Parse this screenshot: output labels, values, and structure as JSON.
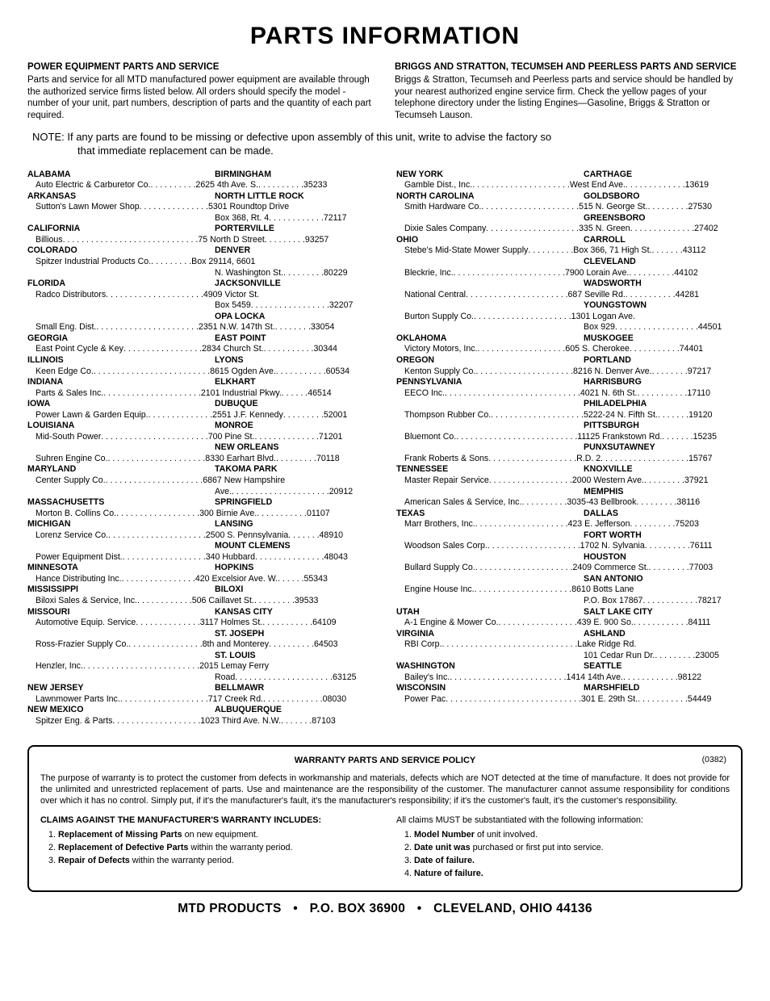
{
  "title": "PARTS INFORMATION",
  "intro": {
    "left_head": "POWER EQUIPMENT PARTS AND SERVICE",
    "left_body": "Parts and service for all MTD manufactured power equipment are available through the authorized service firms listed below. All orders should specify the model -number of your unit, part numbers, description of parts and the quantity of each part required.",
    "right_head": "BRIGGS AND STRATTON, TECUMSEH AND PEERLESS PARTS AND SERVICE",
    "right_body": "Briggs & Stratton, Tecumseh and Peerless parts and service should be handled by your nearest authorized engine service firm. Check the yellow pages of your telephone directory under the listing Engines—Gasoline, Briggs & Stratton or Tecumseh Lauson."
  },
  "note_label": "NOTE:",
  "note_body_1": "If any parts are found to be missing or defective upon assembly of this unit, write to advise the factory so",
  "note_body_2": "that immediate replacement can be made.",
  "left_entries": [
    {
      "type": "state",
      "state": "ALABAMA",
      "city": "BIRMINGHAM"
    },
    {
      "type": "co",
      "company": "Auto Electric & Carburetor Co.",
      "addr": "2625 4th Ave. S.",
      "zip": "35233"
    },
    {
      "type": "state",
      "state": "ARKANSAS",
      "city": "NORTH LITTLE ROCK"
    },
    {
      "type": "co",
      "company": "Sutton's Lawn Mower Shop",
      "addr": "5301 Roundtop Drive",
      "zip": ""
    },
    {
      "type": "cont",
      "addr": "Box 368, Rt. 4",
      "zip": "72117"
    },
    {
      "type": "state",
      "state": "CALIFORNIA",
      "city": "PORTERVILLE"
    },
    {
      "type": "co",
      "company": "Billious",
      "addr": "75 North D Street",
      "zip": "93257"
    },
    {
      "type": "state",
      "state": "COLORADO",
      "city": "DENVER"
    },
    {
      "type": "co",
      "company": "Spitzer Industrial Products Co.",
      "addr": "Box 29114, 6601",
      "zip": ""
    },
    {
      "type": "cont",
      "addr": "N. Washington St.",
      "zip": "80229"
    },
    {
      "type": "state",
      "state": "FLORIDA",
      "city": "JACKSONVILLE"
    },
    {
      "type": "co",
      "company": "Radco Distributors",
      "addr": "4909 Victor St.",
      "zip": ""
    },
    {
      "type": "cont",
      "addr": "Box 5459",
      "zip": "32207"
    },
    {
      "type": "city",
      "city": "OPA LOCKA"
    },
    {
      "type": "co",
      "company": "Small Eng. Dist.",
      "addr": "2351 N.W. 147th St.",
      "zip": "33054"
    },
    {
      "type": "state",
      "state": "GEORGIA",
      "city": "EAST POINT"
    },
    {
      "type": "co",
      "company": "East Point Cycle & Key",
      "addr": "2834 Church St.",
      "zip": "30344"
    },
    {
      "type": "state",
      "state": "ILLINOIS",
      "city": "LYONS"
    },
    {
      "type": "co",
      "company": "Keen Edge Co.",
      "addr": "8615 Ogden Ave.",
      "zip": "60534"
    },
    {
      "type": "state",
      "state": "INDIANA",
      "city": "ELKHART"
    },
    {
      "type": "co",
      "company": "Parts & Sales Inc.",
      "addr": "2101 Industrial Pkwy.",
      "zip": "46514"
    },
    {
      "type": "state",
      "state": "IOWA",
      "city": "DUBUQUE"
    },
    {
      "type": "co",
      "company": "Power Lawn & Garden Equip.",
      "addr": "2551 J.F. Kennedy",
      "zip": "52001"
    },
    {
      "type": "state",
      "state": "LOUISIANA",
      "city": "MONROE"
    },
    {
      "type": "co",
      "company": "Mid-South Power",
      "addr": "700 Pine St.",
      "zip": "71201"
    },
    {
      "type": "city",
      "city": "NEW ORLEANS"
    },
    {
      "type": "co",
      "company": "Suhren Engine Co.",
      "addr": "8330 Earhart Blvd.",
      "zip": "70118"
    },
    {
      "type": "state",
      "state": "MARYLAND",
      "city": "TAKOMA PARK"
    },
    {
      "type": "co",
      "company": "Center Supply Co.",
      "addr": "6867 New Hampshire",
      "zip": ""
    },
    {
      "type": "cont",
      "addr": "Ave.",
      "zip": "20912"
    },
    {
      "type": "state",
      "state": "MASSACHUSETTS",
      "city": "SPRINGFIELD"
    },
    {
      "type": "co",
      "company": "Morton B. Collins Co.",
      "addr": "300 Birnie Ave.",
      "zip": "01107"
    },
    {
      "type": "state",
      "state": "MICHIGAN",
      "city": "LANSING"
    },
    {
      "type": "co",
      "company": "Lorenz Service Co.",
      "addr": "2500 S. Pennsylvania",
      "zip": "48910"
    },
    {
      "type": "city",
      "city": "MOUNT CLEMENS"
    },
    {
      "type": "co",
      "company": "Power Equipment Dist.",
      "addr": "340 Hubbard",
      "zip": "48043"
    },
    {
      "type": "state",
      "state": "MINNESOTA",
      "city": "HOPKINS"
    },
    {
      "type": "co",
      "company": "Hance Distributing Inc.",
      "addr": "420 Excelsior Ave. W.",
      "zip": "55343"
    },
    {
      "type": "state",
      "state": "MISSISSIPPI",
      "city": "BILOXI"
    },
    {
      "type": "co",
      "company": "Biloxi Sales & Service, Inc.",
      "addr": "506 Caillavet St.",
      "zip": "39533"
    },
    {
      "type": "state",
      "state": "MISSOURI",
      "city": "KANSAS CITY"
    },
    {
      "type": "co",
      "company": "Automotive Equip. Service",
      "addr": "3117 Holmes St.",
      "zip": "64109"
    },
    {
      "type": "city",
      "city": "ST. JOSEPH"
    },
    {
      "type": "co",
      "company": "Ross-Frazier Supply Co.",
      "addr": "8th and Monterey",
      "zip": "64503"
    },
    {
      "type": "city",
      "city": "ST. LOUIS"
    },
    {
      "type": "co",
      "company": "Henzler, Inc.",
      "addr": "2015 Lemay Ferry",
      "zip": ""
    },
    {
      "type": "cont",
      "addr": "Road",
      "zip": "63125"
    },
    {
      "type": "state",
      "state": "NEW JERSEY",
      "city": "BELLMAWR"
    },
    {
      "type": "co",
      "company": "Lawnmower Parts Inc.",
      "addr": "717 Creek Rd.",
      "zip": "08030"
    },
    {
      "type": "state",
      "state": "NEW MEXICO",
      "city": "ALBUQUERQUE"
    },
    {
      "type": "co",
      "company": "Spitzer Eng. & Parts",
      "addr": "1023 Third Ave. N.W.",
      "zip": "87103"
    }
  ],
  "right_entries": [
    {
      "type": "state",
      "state": "NEW YORK",
      "city": "CARTHAGE"
    },
    {
      "type": "co",
      "company": "Gamble Dist., Inc.",
      "addr": "West End Ave.",
      "zip": "13619"
    },
    {
      "type": "state",
      "state": "NORTH CAROLINA",
      "city": "GOLDSBORO"
    },
    {
      "type": "co",
      "company": "Smith Hardware Co.",
      "addr": "515 N. George St.",
      "zip": "27530"
    },
    {
      "type": "city",
      "city": "GREENSBORO"
    },
    {
      "type": "co",
      "company": "Dixie Sales Company",
      "addr": "335 N. Green",
      "zip": "27402"
    },
    {
      "type": "state",
      "state": "OHIO",
      "city": "CARROLL"
    },
    {
      "type": "co",
      "company": "Stebe's Mid-State Mower Supply",
      "addr": "Box 366, 71 High St.",
      "zip": "43112"
    },
    {
      "type": "city",
      "city": "CLEVELAND"
    },
    {
      "type": "co",
      "company": "Bleckrie, Inc.",
      "addr": "7900 Lorain Ave.",
      "zip": "44102"
    },
    {
      "type": "city",
      "city": "WADSWORTH"
    },
    {
      "type": "co",
      "company": "National Central",
      "addr": "687 Seville Rd.",
      "zip": "44281"
    },
    {
      "type": "city",
      "city": "YOUNGSTOWN"
    },
    {
      "type": "co",
      "company": "Burton Supply Co.",
      "addr": "1301 Logan Ave.",
      "zip": ""
    },
    {
      "type": "cont",
      "addr": "Box 929",
      "zip": "44501"
    },
    {
      "type": "state",
      "state": "OKLAHOMA",
      "city": "MUSKOGEE"
    },
    {
      "type": "co",
      "company": "Victory Motors, Inc.",
      "addr": "605 S. Cherokee",
      "zip": "74401"
    },
    {
      "type": "state",
      "state": "OREGON",
      "city": "PORTLAND"
    },
    {
      "type": "co",
      "company": "Kenton Supply Co.",
      "addr": "8216 N. Denver Ave.",
      "zip": "97217"
    },
    {
      "type": "state",
      "state": "PENNSYLVANIA",
      "city": "HARRISBURG"
    },
    {
      "type": "co",
      "company": "EECO Inc.",
      "addr": "4021 N. 6th St.",
      "zip": "17110"
    },
    {
      "type": "city",
      "city": "PHILADELPHIA"
    },
    {
      "type": "co",
      "company": "Thompson Rubber Co.",
      "addr": "5222-24 N. Fifth St.",
      "zip": "19120"
    },
    {
      "type": "city",
      "city": "PITTSBURGH"
    },
    {
      "type": "co",
      "company": "Bluemont Co.",
      "addr": "11125 Frankstown Rd.",
      "zip": "15235"
    },
    {
      "type": "city",
      "city": "PUNXSUTAWNEY"
    },
    {
      "type": "co",
      "company": "Frank Roberts & Sons",
      "addr": "R.D. 2",
      "zip": "15767"
    },
    {
      "type": "state",
      "state": "TENNESSEE",
      "city": "KNOXVILLE"
    },
    {
      "type": "co",
      "company": "Master Repair Service",
      "addr": "2000 Western Ave.",
      "zip": "37921"
    },
    {
      "type": "city",
      "city": "MEMPHIS"
    },
    {
      "type": "co",
      "company": "American Sales & Service, Inc.",
      "addr": "3035-43 Bellbrook",
      "zip": "38116"
    },
    {
      "type": "state",
      "state": "TEXAS",
      "city": "DALLAS"
    },
    {
      "type": "co",
      "company": "Marr Brothers, Inc.",
      "addr": "423 E. Jefferson",
      "zip": "75203"
    },
    {
      "type": "city",
      "city": "FORT WORTH"
    },
    {
      "type": "co",
      "company": "Woodson Sales Corp.",
      "addr": "1702 N. Sylvania",
      "zip": "76111"
    },
    {
      "type": "city",
      "city": "HOUSTON"
    },
    {
      "type": "co",
      "company": "Bullard Supply Co.",
      "addr": "2409 Commerce St.",
      "zip": "77003"
    },
    {
      "type": "city",
      "city": "SAN ANTONIO"
    },
    {
      "type": "co",
      "company": "Engine House Inc.",
      "addr": "8610 Botts Lane",
      "zip": ""
    },
    {
      "type": "cont",
      "addr": "P.O. Box 17867",
      "zip": "78217"
    },
    {
      "type": "state",
      "state": "UTAH",
      "city": "SALT LAKE CITY"
    },
    {
      "type": "co",
      "company": "A-1 Engine & Mower Co.",
      "addr": "439 E. 900 So.",
      "zip": "84111"
    },
    {
      "type": "state",
      "state": "VIRGINIA",
      "city": "ASHLAND"
    },
    {
      "type": "co",
      "company": "RBI Corp.",
      "addr": "Lake Ridge Rd.",
      "zip": ""
    },
    {
      "type": "cont",
      "addr": "101 Cedar Run Dr.",
      "zip": "23005"
    },
    {
      "type": "state",
      "state": "WASHINGTON",
      "city": "SEATTLE"
    },
    {
      "type": "co",
      "company": "Bailey's Inc.",
      "addr": "1414 14th Ave.",
      "zip": "98122"
    },
    {
      "type": "state",
      "state": "WISCONSIN",
      "city": "MARSHFIELD"
    },
    {
      "type": "co",
      "company": "Power Pac",
      "addr": "301 E. 29th St.",
      "zip": "54449"
    }
  ],
  "warranty": {
    "title": "WARRANTY PARTS AND SERVICE POLICY",
    "code": "(0382)",
    "purpose": "The purpose of warranty is to protect the customer from defects in workmanship and materials, defects which are NOT detected at the time of manufacture. It does not provide for the unlimited and unrestricted replacement of parts. Use and maintenance are the responsibility of the customer. The manufacturer cannot assume responsibility for conditions over which it has no control. Simply put, if it's the manufacturer's fault, it's the manufacturer's responsibility; if it's the customer's fault, it's the customer's responsibility.",
    "claims_head": "CLAIMS AGAINST THE MANUFACTURER'S WARRANTY INCLUDES:",
    "claims_left": [
      {
        "bold": "Replacement of Missing Parts",
        "rest": " on new equipment."
      },
      {
        "bold": "Replacement of Defective Parts",
        "rest": " within the warranty period."
      },
      {
        "bold": "Repair of Defects",
        "rest": " within the warranty period."
      }
    ],
    "info_head": "All claims MUST be substantiated with the following information:",
    "claims_right": [
      {
        "bold": "Model Number",
        "rest": " of unit involved."
      },
      {
        "bold": "Date unit was ",
        "rest": "purchased or first put into service."
      },
      {
        "bold": "Date of failure.",
        "rest": ""
      },
      {
        "bold": "Nature of failure.",
        "rest": ""
      }
    ]
  },
  "footer": {
    "company": "MTD PRODUCTS",
    "address": "P.O. BOX 36900",
    "citystate": "CLEVELAND, OHIO 44136"
  }
}
